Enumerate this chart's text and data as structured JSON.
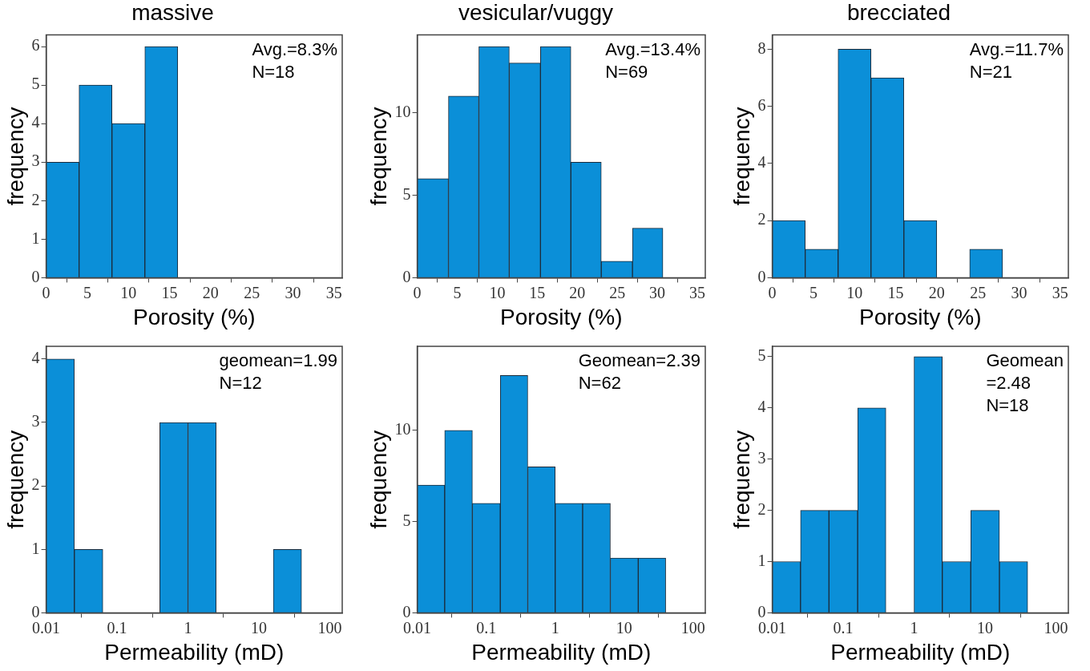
{
  "chart_data": [
    {
      "type": "histogram",
      "title": "massive",
      "xlabel": "Porosity (%)",
      "ylabel": "frequency",
      "bins": [
        0,
        4,
        8,
        12,
        16
      ],
      "values": [
        3,
        5,
        4,
        6
      ],
      "color": "#0b8fd8",
      "xlim": [
        0,
        36
      ],
      "xticks": [
        0,
        5,
        10,
        15,
        20,
        25,
        30,
        35
      ],
      "ylim": [
        0,
        6.3
      ],
      "yticks": [
        0,
        1,
        2,
        3,
        4,
        5,
        6
      ],
      "grid": false,
      "annotations": [
        "Avg.=8.3%",
        "N=18"
      ]
    },
    {
      "type": "histogram",
      "title": "vesicular/vuggy",
      "xlabel": "Porosity (%)",
      "ylabel": "frequency",
      "bins": [
        0,
        3.9,
        7.7,
        11.5,
        15.4,
        19.2,
        23,
        26.9,
        30.7
      ],
      "values": [
        6,
        11,
        14,
        13,
        14,
        7,
        1,
        3
      ],
      "color": "#0b8fd8",
      "xlim": [
        0,
        36
      ],
      "xticks": [
        0,
        5,
        10,
        15,
        20,
        25,
        30,
        35
      ],
      "ylim": [
        0,
        14.7
      ],
      "yticks": [
        0,
        5,
        10
      ],
      "grid": false,
      "annotations": [
        "Avg.=13.4%",
        "N=69"
      ]
    },
    {
      "type": "histogram",
      "title": "brecciated",
      "xlabel": "Porosity (%)",
      "ylabel": "frequency",
      "bins": [
        0,
        4,
        8,
        12,
        16,
        20,
        24,
        28
      ],
      "values": [
        2,
        1,
        8,
        7,
        2,
        0,
        1
      ],
      "color": "#0b8fd8",
      "xlim": [
        0,
        36
      ],
      "xticks": [
        0,
        5,
        10,
        15,
        20,
        25,
        30,
        35
      ],
      "ylim": [
        0,
        8.5
      ],
      "yticks": [
        0,
        2,
        4,
        6,
        8
      ],
      "grid": false,
      "annotations": [
        "Avg.=11.7%",
        "N=21"
      ]
    },
    {
      "type": "histogram",
      "xlabel": "Permeability (mD)",
      "ylabel": "frequency",
      "log": "x",
      "bins": [
        0.01,
        0.025,
        0.063,
        0.16,
        0.4,
        1,
        2.5,
        6.3,
        16,
        40
      ],
      "values": [
        4,
        1,
        0,
        0,
        3,
        3,
        0,
        0,
        1
      ],
      "color": "#0b8fd8",
      "xlim": [
        0.01,
        150
      ],
      "xticks": [
        0.01,
        0.1,
        1,
        10,
        100
      ],
      "ylim": [
        0,
        4.2
      ],
      "yticks": [
        0,
        1,
        2,
        3,
        4
      ],
      "grid": false,
      "annotations": [
        "geomean=1.99",
        "N=12"
      ]
    },
    {
      "type": "histogram",
      "xlabel": "Permeability (mD)",
      "ylabel": "frequency",
      "log": "x",
      "bins": [
        0.01,
        0.025,
        0.063,
        0.16,
        0.4,
        1,
        2.5,
        6.3,
        16,
        40
      ],
      "values": [
        7,
        10,
        6,
        13,
        8,
        6,
        6,
        3,
        3
      ],
      "color": "#0b8fd8",
      "xlim": [
        0.01,
        150
      ],
      "xticks": [
        0.01,
        0.1,
        1,
        10,
        100
      ],
      "ylim": [
        0,
        14.6
      ],
      "yticks": [
        0,
        5,
        10
      ],
      "grid": false,
      "annotations": [
        "Geomean=2.39",
        "N=62"
      ]
    },
    {
      "type": "histogram",
      "xlabel": "Permeability (mD)",
      "ylabel": "frequency",
      "log": "x",
      "bins": [
        0.01,
        0.025,
        0.063,
        0.16,
        0.4,
        1,
        2.5,
        6.3,
        16,
        40
      ],
      "values": [
        1,
        2,
        2,
        4,
        0,
        5,
        1,
        2,
        1
      ],
      "color": "#0b8fd8",
      "xlim": [
        0.01,
        150
      ],
      "xticks": [
        0.01,
        0.1,
        1,
        10,
        100
      ],
      "ylim": [
        0,
        5.2
      ],
      "yticks": [
        0,
        1,
        2,
        3,
        4,
        5
      ],
      "grid": false,
      "annotations": [
        "Geomean\n=2.48",
        "N=18"
      ]
    }
  ]
}
